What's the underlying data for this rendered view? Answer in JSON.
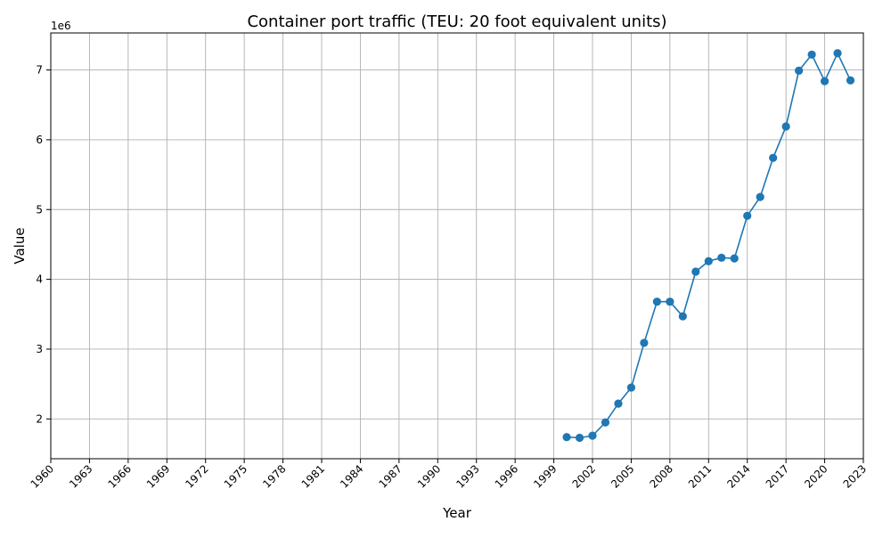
{
  "chart_data": {
    "type": "line",
    "title": "Container port traffic (TEU: 20 foot equivalent units)",
    "xlabel": "Year",
    "ylabel": "Value",
    "y_offset_label": "1e6",
    "xlim": [
      1960,
      2023
    ],
    "ylim": [
      1430000,
      7530000
    ],
    "x_ticks": [
      "1960",
      "1963",
      "1966",
      "1969",
      "1972",
      "1975",
      "1978",
      "1981",
      "1984",
      "1987",
      "1990",
      "1993",
      "1996",
      "1999",
      "2002",
      "2005",
      "2008",
      "2011",
      "2014",
      "2017",
      "2020",
      "2023"
    ],
    "y_ticks": [
      2000000,
      3000000,
      4000000,
      5000000,
      6000000,
      7000000
    ],
    "y_tick_labels": [
      "2",
      "3",
      "4",
      "5",
      "6",
      "7"
    ],
    "x_tick_rotation": 45,
    "grid": true,
    "marker": "circle",
    "color": "#1f77b4",
    "series": [
      {
        "x": [
          2000,
          2001,
          2002,
          2003,
          2004,
          2005,
          2006,
          2007,
          2008,
          2009,
          2010,
          2011,
          2012,
          2013,
          2014,
          2015,
          2016,
          2017,
          2018,
          2019,
          2020,
          2021,
          2022
        ],
        "values": [
          1740000,
          1730000,
          1760000,
          1950000,
          2220000,
          2450000,
          3090000,
          3680000,
          3680000,
          3470000,
          4110000,
          4260000,
          4310000,
          4300000,
          4910000,
          5180000,
          5740000,
          6190000,
          6990000,
          7220000,
          6840000,
          7240000,
          6850000
        ]
      }
    ]
  }
}
